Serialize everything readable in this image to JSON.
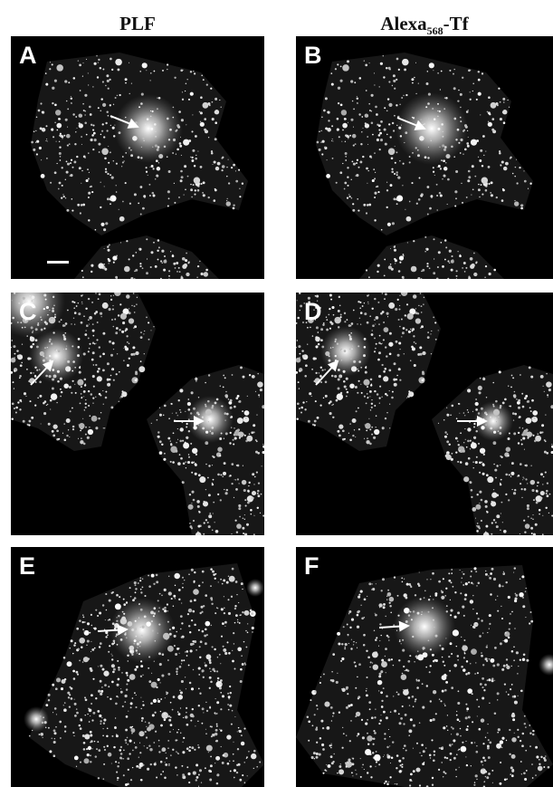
{
  "columns": {
    "left": {
      "label": "PLF"
    },
    "right": {
      "label_main": "Alexa",
      "label_sub": "568",
      "label_tail": "-Tf"
    }
  },
  "panels": [
    {
      "letter": "A"
    },
    {
      "letter": "B"
    },
    {
      "letter": "C"
    },
    {
      "letter": "D"
    },
    {
      "letter": "E"
    },
    {
      "letter": "F"
    }
  ],
  "colors": {
    "background": "#ffffff",
    "panel_bg": "#000000",
    "label": "#ffffff",
    "header": "#111111"
  }
}
